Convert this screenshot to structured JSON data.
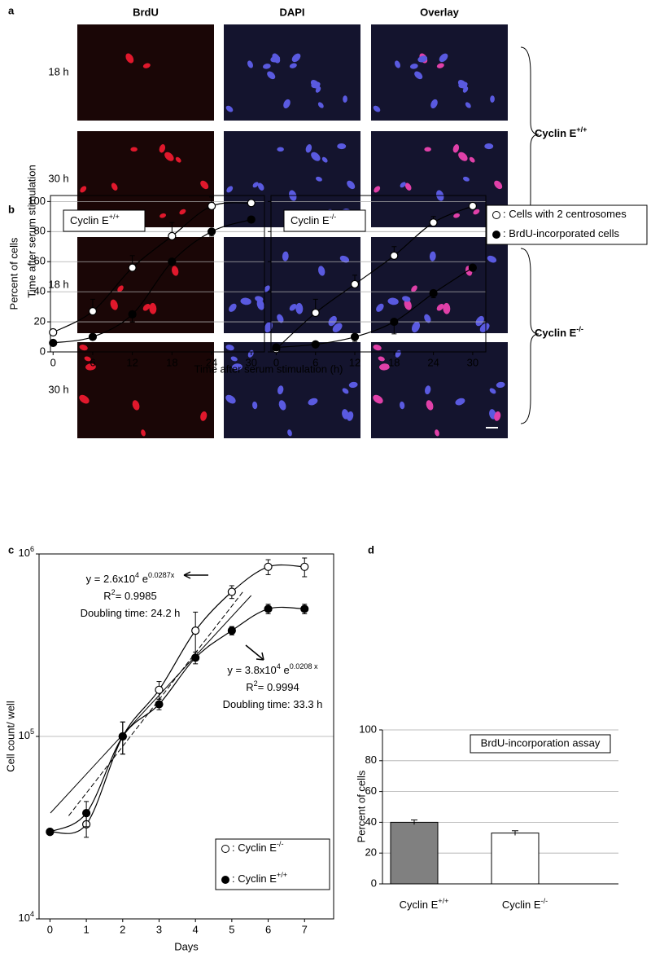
{
  "panel_a": {
    "label": "a",
    "columns": [
      "BrdU",
      "DAPI",
      "Overlay"
    ],
    "rows": [
      "18 h",
      "30 h",
      "18 h",
      "30 h"
    ],
    "y_label": "Time after serum stimulation",
    "groups": [
      {
        "text": "Cyclin E",
        "sup": "+/+"
      },
      {
        "text": "Cyclin E",
        "sup": "-/-"
      }
    ]
  },
  "chart_data": [
    {
      "type": "line",
      "panel": "b",
      "title": {
        "text": "Cyclin E",
        "sup": "+/+"
      },
      "y_label": "Percent of cells",
      "x_label": "Time after serum stimulation (h)",
      "x": [
        0,
        6,
        12,
        18,
        24,
        30
      ],
      "xlim": [
        -0.4,
        32
      ],
      "xticks": [
        0,
        6,
        12,
        18,
        24,
        30
      ],
      "ylim": [
        0,
        104
      ],
      "yticks": [
        0,
        20,
        40,
        60,
        80,
        100
      ],
      "grid": true,
      "legend": "right",
      "series": [
        {
          "name": ": Cells with 2 centrosomes",
          "marker": "open",
          "color": "#000000",
          "values": [
            13,
            27,
            56,
            77,
            97,
            99
          ],
          "errors": [
            null,
            8,
            8,
            9,
            6,
            null
          ],
          "error_direction": "up"
        },
        {
          "name": ": BrdU-incorporated cells",
          "marker": "filled",
          "color": "#000000",
          "values": [
            6,
            10,
            25,
            60,
            80,
            88
          ],
          "errors": [
            null,
            null,
            5,
            null,
            3,
            null
          ],
          "error_direction": "down"
        }
      ]
    },
    {
      "type": "line",
      "title": {
        "text": "Cyclin E",
        "sup": "-/-"
      },
      "x": [
        0,
        6,
        12,
        18,
        24,
        30
      ],
      "xlim": [
        -0.8,
        32
      ],
      "xticks": [
        0,
        6,
        12,
        18,
        24,
        30
      ],
      "ylim": [
        0,
        104
      ],
      "yticks": [
        0,
        20,
        40,
        60,
        80,
        100
      ],
      "grid": true,
      "ytick_labels": false,
      "series": [
        {
          "marker": "open",
          "color": "#000000",
          "values": [
            2,
            26,
            45,
            64,
            86,
            97
          ],
          "errors": [
            null,
            9,
            6,
            6,
            4,
            null
          ],
          "error_direction": "up"
        },
        {
          "marker": "filled",
          "color": "#000000",
          "values": [
            3,
            5,
            10,
            20,
            39,
            56
          ],
          "errors": [
            null,
            null,
            3,
            8,
            3,
            null
          ],
          "error_direction": "down"
        }
      ]
    },
    {
      "type": "line",
      "panel": "c",
      "log_y": true,
      "y_label": "Cell count/ well",
      "x_label": "Days",
      "x": [
        0,
        1,
        2,
        3,
        4,
        5,
        6,
        7
      ],
      "xlim": [
        -0.3,
        7.8
      ],
      "xticks": [
        0,
        1,
        2,
        3,
        4,
        5,
        6,
        7
      ],
      "ylim": [
        10000,
        1000000
      ],
      "yticks": [
        {
          "value": 10000,
          "label": "10",
          "sup": "4"
        },
        {
          "value": 100000,
          "label": "10",
          "sup": "5"
        },
        {
          "value": 1000000,
          "label": "10",
          "sup": "6"
        }
      ],
      "grid": true,
      "legend": "lower right",
      "series": [
        {
          "name": ": Cyclin E",
          "name_sup": "-/-",
          "marker": "open",
          "color": "#000000",
          "values": [
            30000,
            33000,
            100000,
            180000,
            380000,
            620000,
            850000,
            850000
          ],
          "errors": [
            null,
            5000,
            20000,
            20000,
            100000,
            50000,
            80000,
            100000
          ],
          "error_direction": "both"
        },
        {
          "name": ": Cyclin E",
          "name_sup": "+/+",
          "marker": "filled",
          "color": "#000000",
          "values": [
            30000,
            38000,
            100000,
            150000,
            270000,
            380000,
            500000,
            500000
          ],
          "errors": [
            null,
            6000,
            20000,
            10000,
            20000,
            20000,
            30000,
            30000
          ],
          "error_direction": "both"
        }
      ],
      "annotations": [
        [
          [
            {
              "text": "y = 2.6x10"
            },
            {
              "sup": "4"
            },
            {
              "text": " e"
            },
            {
              "sup": "0.0287x"
            }
          ],
          [
            {
              "text": "R"
            },
            {
              "sup": "2"
            },
            {
              "text": "= 0.9985"
            }
          ],
          [
            {
              "text": "Doubling time: 24.2 h"
            }
          ]
        ],
        [
          [
            {
              "text": "y = 3.8x10"
            },
            {
              "sup": "4"
            },
            {
              "text": " e"
            },
            {
              "sup": "0.0208 x"
            }
          ],
          [
            {
              "text": "R"
            },
            {
              "sup": "2"
            },
            {
              "text": "= 0.9994"
            }
          ],
          [
            {
              "text": "Doubling time: 33.3 h"
            }
          ]
        ]
      ]
    },
    {
      "type": "bar",
      "panel": "d",
      "title": "BrdU-incorporation assay",
      "y_label": "Percent of cells",
      "categories": [
        "Cyclin E",
        "Cyclin E"
      ],
      "category_sups": [
        "+/+",
        "-/-"
      ],
      "values": [
        40,
        33
      ],
      "errors": [
        1.5,
        1.5
      ],
      "colors": [
        "#808080",
        "#ffffff"
      ],
      "ylim": [
        0,
        100
      ],
      "yticks": [
        0,
        20,
        40,
        60,
        80,
        100
      ],
      "grid": true
    }
  ]
}
